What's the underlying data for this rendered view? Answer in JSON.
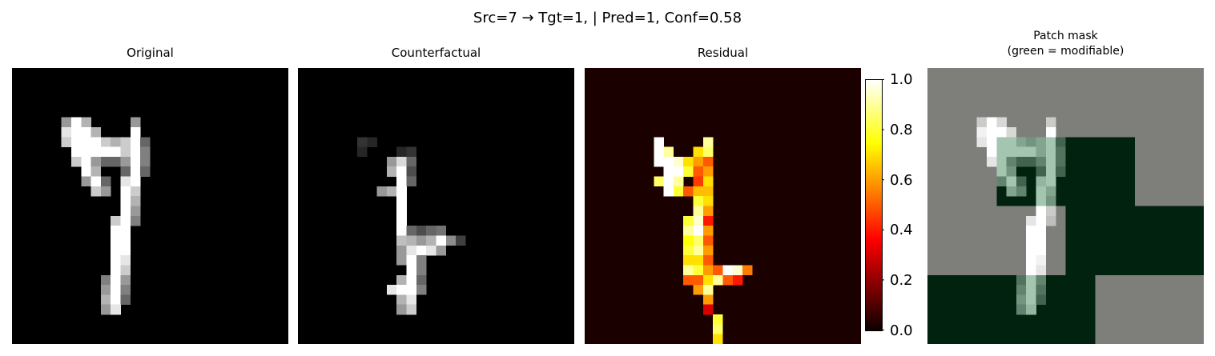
{
  "suptitle": "Src=7 → Tgt=1, | Pred=1, Conf=0.58",
  "panels": [
    {
      "title": "Original"
    },
    {
      "title": "Counterfactual"
    },
    {
      "title": "Residual"
    },
    {
      "title_line1": "Patch mask",
      "title_line2": "(green = modifiable)"
    }
  ],
  "colorbar": {
    "ticks": [
      "1.0",
      "0.8",
      "0.6",
      "0.4",
      "0.2",
      "0.0"
    ],
    "tick_values": [
      1.0,
      0.8,
      0.6,
      0.4,
      0.2,
      0.0
    ],
    "colormap": "hot",
    "vmin": 0.0,
    "vmax": 1.0
  },
  "colors": {
    "mask_modifiable": "#00220e",
    "mask_fixed": "#7e7f7b",
    "mask_modifiable_digit": "#a4c6b0"
  },
  "chart_data": [
    {
      "type": "heatmap",
      "title": "Original",
      "grid_size": [
        28,
        28
      ],
      "colormap": "gray",
      "cells": [
        [
          5,
          5,
          0.6
        ],
        [
          5,
          6,
          1.0
        ],
        [
          5,
          7,
          0.7
        ],
        [
          5,
          12,
          0.6
        ],
        [
          6,
          5,
          0.9
        ],
        [
          6,
          6,
          1.0
        ],
        [
          6,
          7,
          1.0
        ],
        [
          6,
          8,
          0.7
        ],
        [
          6,
          12,
          1.0
        ],
        [
          7,
          5,
          0.8
        ],
        [
          7,
          6,
          1.0
        ],
        [
          7,
          7,
          1.0
        ],
        [
          7,
          8,
          1.0
        ],
        [
          7,
          9,
          0.8
        ],
        [
          7,
          10,
          0.7
        ],
        [
          7,
          11,
          0.8
        ],
        [
          7,
          12,
          1.0
        ],
        [
          7,
          13,
          0.4
        ],
        [
          8,
          6,
          1.0
        ],
        [
          8,
          7,
          1.0
        ],
        [
          8,
          8,
          1.0
        ],
        [
          8,
          9,
          1.0
        ],
        [
          8,
          10,
          1.0
        ],
        [
          8,
          11,
          0.8
        ],
        [
          8,
          12,
          1.0
        ],
        [
          8,
          13,
          0.5
        ],
        [
          9,
          6,
          0.8
        ],
        [
          9,
          7,
          1.0
        ],
        [
          9,
          8,
          0.6
        ],
        [
          9,
          9,
          0.4
        ],
        [
          9,
          10,
          0.4
        ],
        [
          9,
          11,
          0.6
        ],
        [
          9,
          12,
          1.0
        ],
        [
          9,
          13,
          0.5
        ],
        [
          10,
          7,
          1.0
        ],
        [
          10,
          8,
          0.7
        ],
        [
          10,
          11,
          0.4
        ],
        [
          10,
          12,
          1.0
        ],
        [
          10,
          13,
          0.4
        ],
        [
          11,
          7,
          0.6
        ],
        [
          11,
          8,
          1.0
        ],
        [
          11,
          9,
          0.4
        ],
        [
          11,
          11,
          0.9
        ],
        [
          11,
          12,
          1.0
        ],
        [
          12,
          8,
          0.8
        ],
        [
          12,
          9,
          0.6
        ],
        [
          12,
          11,
          1.0
        ],
        [
          12,
          12,
          0.8
        ],
        [
          13,
          11,
          1.0
        ],
        [
          13,
          12,
          0.7
        ],
        [
          14,
          11,
          1.0
        ],
        [
          14,
          12,
          0.6
        ],
        [
          15,
          10,
          0.8
        ],
        [
          15,
          11,
          1.0
        ],
        [
          15,
          12,
          0.5
        ],
        [
          16,
          10,
          1.0
        ],
        [
          16,
          11,
          1.0
        ],
        [
          17,
          10,
          1.0
        ],
        [
          17,
          11,
          1.0
        ],
        [
          18,
          10,
          1.0
        ],
        [
          18,
          11,
          1.0
        ],
        [
          19,
          10,
          1.0
        ],
        [
          19,
          11,
          0.9
        ],
        [
          20,
          10,
          1.0
        ],
        [
          20,
          11,
          0.8
        ],
        [
          21,
          9,
          0.5
        ],
        [
          21,
          10,
          1.0
        ],
        [
          21,
          11,
          0.6
        ],
        [
          22,
          9,
          0.6
        ],
        [
          22,
          10,
          1.0
        ],
        [
          22,
          11,
          0.5
        ],
        [
          23,
          9,
          0.7
        ],
        [
          23,
          10,
          1.0
        ],
        [
          23,
          11,
          0.4
        ],
        [
          24,
          9,
          0.6
        ],
        [
          24,
          10,
          0.9
        ]
      ]
    },
    {
      "type": "heatmap",
      "title": "Counterfactual",
      "grid_size": [
        28,
        28
      ],
      "colormap": "gray",
      "cells": [
        [
          7,
          6,
          0.2
        ],
        [
          7,
          7,
          0.15
        ],
        [
          8,
          6,
          0.15
        ],
        [
          8,
          10,
          0.15
        ],
        [
          8,
          11,
          0.2
        ],
        [
          9,
          9,
          0.6
        ],
        [
          9,
          10,
          0.85
        ],
        [
          9,
          11,
          0.4
        ],
        [
          10,
          9,
          0.7
        ],
        [
          10,
          10,
          1.0
        ],
        [
          10,
          11,
          0.3
        ],
        [
          11,
          10,
          1.0
        ],
        [
          11,
          11,
          0.4
        ],
        [
          12,
          8,
          0.6
        ],
        [
          12,
          9,
          0.7
        ],
        [
          12,
          10,
          1.0
        ],
        [
          13,
          10,
          1.0
        ],
        [
          14,
          10,
          1.0
        ],
        [
          15,
          10,
          1.0
        ],
        [
          16,
          10,
          1.0
        ],
        [
          16,
          11,
          0.4
        ],
        [
          16,
          12,
          0.3
        ],
        [
          16,
          13,
          0.4
        ],
        [
          16,
          14,
          0.45
        ],
        [
          17,
          10,
          0.75
        ],
        [
          17,
          11,
          0.7
        ],
        [
          17,
          12,
          0.6
        ],
        [
          17,
          13,
          0.7
        ],
        [
          17,
          14,
          1.0
        ],
        [
          17,
          15,
          0.55
        ],
        [
          17,
          16,
          0.25
        ],
        [
          18,
          10,
          0.6
        ],
        [
          18,
          11,
          0.9
        ],
        [
          18,
          12,
          1.0
        ],
        [
          18,
          13,
          0.9
        ],
        [
          18,
          14,
          0.6
        ],
        [
          19,
          10,
          0.6
        ],
        [
          19,
          11,
          1.0
        ],
        [
          19,
          12,
          0.5
        ],
        [
          20,
          11,
          1.0
        ],
        [
          20,
          12,
          0.5
        ],
        [
          21,
          10,
          0.7
        ],
        [
          21,
          11,
          1.0
        ],
        [
          21,
          12,
          0.4
        ],
        [
          22,
          9,
          0.9
        ],
        [
          22,
          10,
          1.0
        ],
        [
          22,
          11,
          1.0
        ],
        [
          22,
          12,
          0.5
        ],
        [
          23,
          10,
          0.7
        ],
        [
          23,
          11,
          0.9
        ],
        [
          24,
          10,
          0.6
        ],
        [
          24,
          11,
          0.8
        ]
      ]
    },
    {
      "type": "heatmap",
      "title": "Residual",
      "grid_size": [
        28,
        28
      ],
      "colormap": "hot",
      "cells": [
        [
          7,
          7,
          1.0
        ],
        [
          7,
          12,
          0.9
        ],
        [
          8,
          7,
          1.0
        ],
        [
          8,
          8,
          0.9
        ],
        [
          8,
          11,
          0.7
        ],
        [
          8,
          12,
          0.85
        ],
        [
          9,
          7,
          1.0
        ],
        [
          9,
          8,
          1.0
        ],
        [
          9,
          9,
          0.95
        ],
        [
          9,
          10,
          0.7
        ],
        [
          9,
          11,
          0.6
        ],
        [
          9,
          12,
          0.5
        ],
        [
          10,
          8,
          1.0
        ],
        [
          10,
          9,
          1.0
        ],
        [
          10,
          10,
          0.8
        ],
        [
          10,
          11,
          0.5
        ],
        [
          10,
          12,
          0.6
        ],
        [
          11,
          7,
          0.85
        ],
        [
          11,
          8,
          1.0
        ],
        [
          11,
          9,
          0.9
        ],
        [
          11,
          11,
          0.45
        ],
        [
          11,
          12,
          0.7
        ],
        [
          12,
          8,
          1.0
        ],
        [
          12,
          9,
          0.8
        ],
        [
          12,
          10,
          0.5
        ],
        [
          12,
          11,
          0.65
        ],
        [
          12,
          12,
          0.65
        ],
        [
          13,
          11,
          0.8
        ],
        [
          13,
          12,
          0.7
        ],
        [
          14,
          11,
          0.9
        ],
        [
          14,
          12,
          0.6
        ],
        [
          15,
          10,
          0.8
        ],
        [
          15,
          11,
          0.95
        ],
        [
          15,
          12,
          0.4
        ],
        [
          16,
          10,
          0.9
        ],
        [
          16,
          11,
          1.0
        ],
        [
          16,
          12,
          0.6
        ],
        [
          17,
          10,
          0.75
        ],
        [
          17,
          11,
          0.85
        ],
        [
          17,
          12,
          0.5
        ],
        [
          18,
          10,
          0.8
        ],
        [
          18,
          11,
          0.9
        ],
        [
          18,
          12,
          0.6
        ],
        [
          19,
          10,
          0.7
        ],
        [
          19,
          11,
          0.7
        ],
        [
          19,
          12,
          0.5
        ],
        [
          20,
          10,
          0.9
        ],
        [
          20,
          11,
          0.8
        ],
        [
          20,
          12,
          0.6
        ],
        [
          20,
          13,
          0.5
        ],
        [
          20,
          14,
          1.0
        ],
        [
          20,
          15,
          0.95
        ],
        [
          20,
          16,
          0.55
        ],
        [
          21,
          10,
          0.5
        ],
        [
          21,
          11,
          0.5
        ],
        [
          21,
          12,
          0.7
        ],
        [
          21,
          13,
          0.9
        ],
        [
          21,
          14,
          0.5
        ],
        [
          21,
          15,
          0.4
        ],
        [
          22,
          11,
          0.6
        ],
        [
          22,
          12,
          0.9
        ],
        [
          23,
          12,
          0.6
        ],
        [
          24,
          12,
          0.3
        ],
        [
          25,
          13,
          0.8
        ],
        [
          26,
          13,
          0.85
        ],
        [
          27,
          13,
          0.7
        ]
      ]
    },
    {
      "type": "heatmap",
      "title": "Patch mask\n(green = modifiable)",
      "grid_size": [
        28,
        28
      ],
      "legend": "green = modifiable",
      "note": "grey = fixed region, dark green = modifiable region; faded digit overlaid"
    }
  ]
}
